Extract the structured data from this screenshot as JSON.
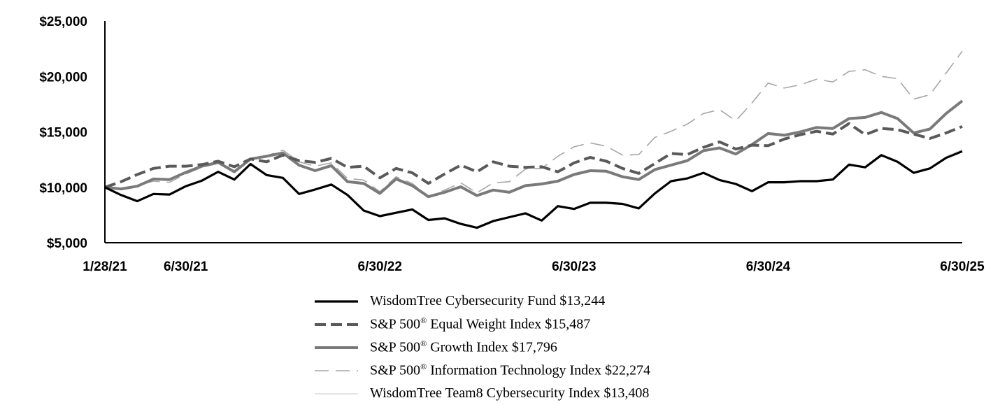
{
  "chart_data": {
    "type": "line",
    "title": "",
    "xlabel": "",
    "ylabel": "",
    "ylim": [
      5000,
      25000
    ],
    "y_ticks": [
      {
        "value": 5000,
        "label": "$5,000"
      },
      {
        "value": 10000,
        "label": "$10,000"
      },
      {
        "value": 15000,
        "label": "$15,000"
      },
      {
        "value": 20000,
        "label": "$20,000"
      },
      {
        "value": 25000,
        "label": "$25,000"
      }
    ],
    "x_ticks": [
      {
        "index": 0,
        "label": "1/28/21"
      },
      {
        "index": 5,
        "label": "6/30/21"
      },
      {
        "index": 17,
        "label": "6/30/22"
      },
      {
        "index": 29,
        "label": "6/30/23"
      },
      {
        "index": 41,
        "label": "6/30/24"
      },
      {
        "index": 53,
        "label": "6/30/25"
      }
    ],
    "x_count": 54,
    "grid": false,
    "legend_position": "bottom",
    "series": [
      {
        "name": "WisdomTree Cybersecurity Fund $13,244",
        "sup_after": "",
        "color": "#000000",
        "style": "solid",
        "values": [
          10000,
          9300,
          8750,
          9400,
          9350,
          10100,
          10600,
          11400,
          10700,
          12100,
          11100,
          10850,
          9400,
          9800,
          10250,
          9300,
          7900,
          7400,
          7700,
          8000,
          7050,
          7200,
          6700,
          6350,
          6950,
          7300,
          7650,
          7000,
          8300,
          8050,
          8600,
          8600,
          8500,
          8100,
          9450,
          10550,
          10800,
          11300,
          10650,
          10300,
          9650,
          10450,
          10450,
          10550,
          10550,
          10700,
          12050,
          11800,
          12900,
          12300,
          11300,
          11700,
          12650,
          13244
        ]
      },
      {
        "name": " Equal Weight Index $15,487",
        "prefix": "S&P 500",
        "sup_after": "®",
        "color": "#5a5a5a",
        "style": "dash",
        "values": [
          10000,
          10500,
          11150,
          11700,
          11900,
          11900,
          12050,
          12350,
          11850,
          12550,
          12300,
          12900,
          12400,
          12250,
          12600,
          11800,
          11900,
          10850,
          11700,
          11300,
          10350,
          11200,
          12000,
          11400,
          12300,
          11900,
          11800,
          11850,
          11400,
          12200,
          12700,
          12350,
          11700,
          11250,
          12150,
          13050,
          12950,
          13600,
          14100,
          13450,
          13800,
          13750,
          14350,
          14750,
          15050,
          14800,
          15750,
          14750,
          15300,
          15200,
          14800,
          14400,
          14900,
          15487
        ]
      },
      {
        "name": " Growth Index $17,796",
        "prefix": "S&P 500",
        "sup_after": "®",
        "color": "#7a7a7a",
        "style": "solid",
        "values": [
          10000,
          9850,
          10100,
          10750,
          10700,
          11350,
          11900,
          12250,
          11400,
          12550,
          12800,
          13100,
          12000,
          11500,
          11950,
          10500,
          10350,
          9450,
          10750,
          10150,
          9150,
          9550,
          10050,
          9250,
          9750,
          9550,
          10150,
          10300,
          10550,
          11150,
          11500,
          11450,
          10950,
          10700,
          11600,
          12000,
          12400,
          13300,
          13550,
          13000,
          13850,
          14850,
          14700,
          15000,
          15400,
          15300,
          16200,
          16300,
          16750,
          16200,
          14900,
          15250,
          16650,
          17796
        ]
      },
      {
        "name": " Information Technology Index $22,274",
        "prefix": "S&P 500",
        "sup_after": "®",
        "color": "#a6a6a6",
        "style": "longdash",
        "values": [
          10000,
          9850,
          10150,
          10550,
          10450,
          11200,
          11800,
          12150,
          11350,
          12550,
          12850,
          13350,
          12300,
          11900,
          12200,
          10800,
          10650,
          9600,
          10950,
          10350,
          9150,
          9750,
          10400,
          9500,
          10400,
          10500,
          11650,
          11700,
          12800,
          13650,
          14000,
          13700,
          12900,
          12950,
          14500,
          15050,
          15700,
          16650,
          17000,
          16000,
          17600,
          19400,
          18950,
          19250,
          19750,
          19500,
          20450,
          20600,
          20000,
          19800,
          17950,
          18350,
          20300,
          22274
        ]
      },
      {
        "name": "WisdomTree Team8 Cybersecurity Index $13,408",
        "sup_after": "",
        "color": "#dcdcdc",
        "style": "solid",
        "values": [
          10000,
          9350,
          8800,
          9450,
          9400,
          10150,
          10650,
          11450,
          10750,
          12150,
          11150,
          10900,
          9450,
          9850,
          10300,
          9350,
          7950,
          7450,
          7750,
          8050,
          7100,
          7250,
          6750,
          6400,
          7000,
          7350,
          7700,
          7050,
          8350,
          8100,
          8650,
          8650,
          8550,
          8150,
          9500,
          10600,
          10850,
          11350,
          10700,
          10350,
          9700,
          10500,
          10500,
          10600,
          10600,
          10750,
          12100,
          11850,
          12950,
          12350,
          11350,
          11750,
          12750,
          13408
        ]
      }
    ]
  }
}
